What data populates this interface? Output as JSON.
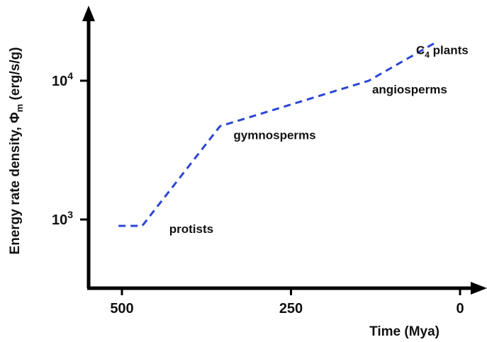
{
  "chart_data": {
    "type": "line",
    "xlabel": "Time (Mya)",
    "ylabel": "Energy rate density, Φm (erg/s/g)",
    "ylabel_main": "Energy rate density, Φ",
    "ylabel_sub": "m",
    "ylabel_unit": " (erg/s/g)",
    "x_reversed": true,
    "xlim": [
      500,
      0
    ],
    "ylim": [
      300,
      30000
    ],
    "yscale": "log",
    "x_ticks": [
      {
        "value": 500,
        "label": "500"
      },
      {
        "value": 250,
        "label": "250"
      },
      {
        "value": 0,
        "label": "0"
      }
    ],
    "y_ticks": [
      {
        "value": 1000,
        "base": "10",
        "exp": "3"
      },
      {
        "value": 10000,
        "base": "10",
        "exp": "4"
      }
    ],
    "grid": false,
    "series": [
      {
        "color": "#2a46d6",
        "line_style": "dashed",
        "points": [
          {
            "x": 505,
            "y": 900
          },
          {
            "x": 470,
            "y": 900
          },
          {
            "x": 355,
            "y": 4700
          },
          {
            "x": 135,
            "y": 10000
          },
          {
            "x": 35,
            "y": 19000
          }
        ]
      }
    ],
    "annotations": [
      {
        "id": "protists",
        "text": "protists",
        "x": 430,
        "y": 800
      },
      {
        "id": "gymnosperms",
        "text": "gymnosperms",
        "x": 335,
        "y": 3800
      },
      {
        "id": "angiosperms",
        "text": "angiosperms",
        "x": 130,
        "y": 8100
      },
      {
        "id": "c4",
        "text_main": "C",
        "text_sub": "4",
        "text_rest": " plants",
        "x": 65,
        "y": 15500
      }
    ]
  }
}
